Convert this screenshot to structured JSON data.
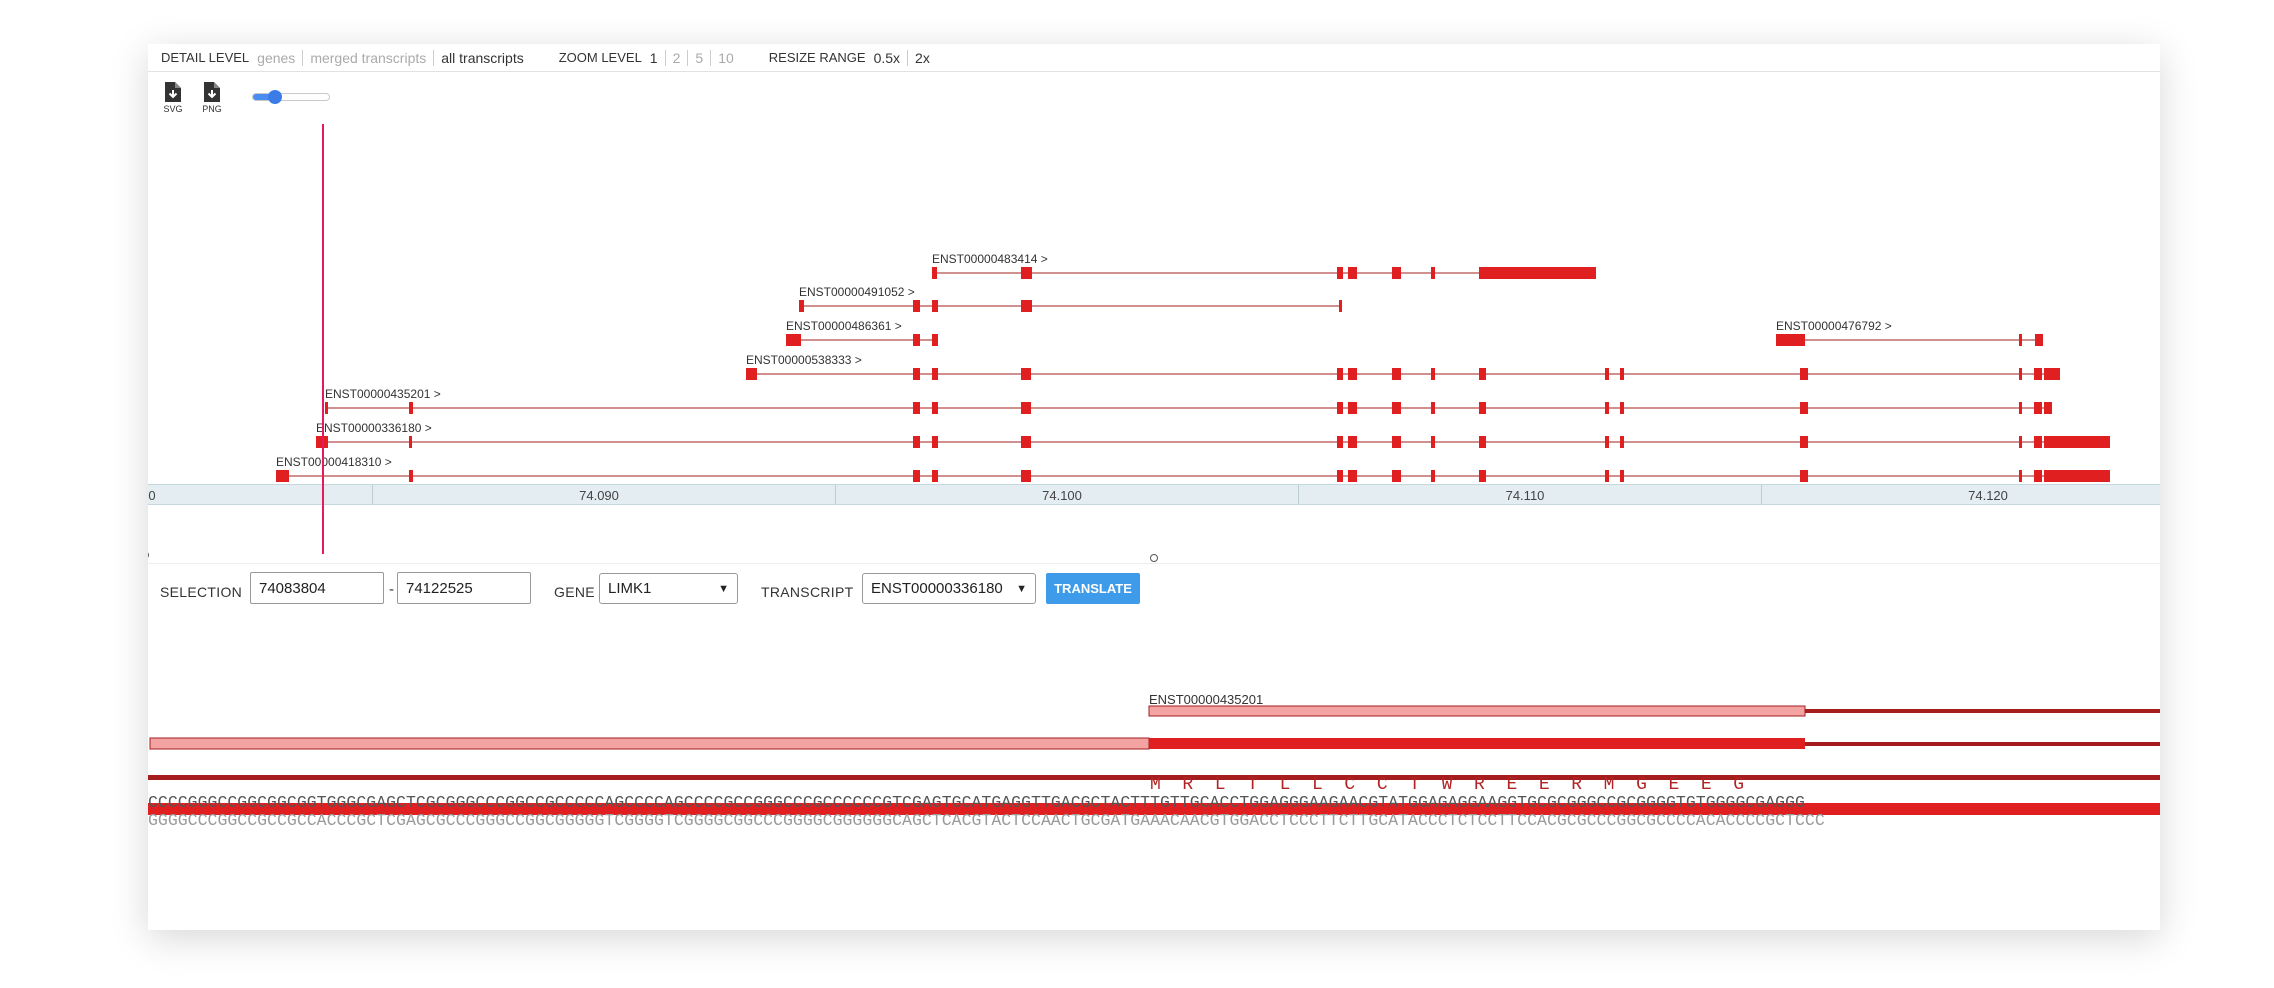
{
  "toolbar": {
    "detail_level_label": "DETAIL LEVEL",
    "detail_options": [
      "genes",
      "merged transcripts",
      "all transcripts"
    ],
    "detail_active": "all transcripts",
    "zoom_label": "ZOOM LEVEL",
    "zoom_options": [
      "1",
      "2",
      "5",
      "10"
    ],
    "zoom_active": "1",
    "resize_label": "RESIZE RANGE",
    "resize_options": [
      "0.5x",
      "2x"
    ]
  },
  "export": {
    "svg_label": "SVG",
    "png_label": "PNG",
    "icon": "file-download-icon"
  },
  "slider": {
    "value_fraction": 0.2
  },
  "colors": {
    "exon": "#e02020",
    "intron": "#c26b6b",
    "cursor": "#e8195f",
    "button": "#3d9be9",
    "utr": "#f4a3a3",
    "dark_track": "#a61d1d"
  },
  "ruler": {
    "labels": [
      "0",
      "74.090",
      "74.100",
      "74.110",
      "74.120"
    ]
  },
  "transcripts": [
    {
      "id": "ENST00000483414 >"
    },
    {
      "id": "ENST00000491052 >"
    },
    {
      "id": "ENST00000486361 >"
    },
    {
      "id": "ENST00000476792 >"
    },
    {
      "id": "ENST00000538333 >"
    },
    {
      "id": "ENST00000435201 >"
    },
    {
      "id": "ENST00000336180 >"
    },
    {
      "id": "ENST00000418310 >"
    }
  ],
  "controls": {
    "selection_label": "SELECTION",
    "selection_start": "74083804",
    "selection_dash": "-",
    "selection_end": "74122525",
    "gene_label": "GENE",
    "gene_value": "LIMK1",
    "transcript_label": "TRANSCRIPT",
    "transcript_value": "ENST00000336180",
    "translate_label": "TRANSLATE"
  },
  "detail": {
    "transcript_label": "ENST00000435201",
    "amino_acids": "M  R  L  T  L  L  C  C  T  W  R  E  E  R  M  G  E  E  G",
    "seq_forward": "CCCCGGGCCGGCGGCGGTGGGCGAGCTCGCGGGCCCGGCCGCCCCCAGCCCCAGCCCCGCCGGGCCCGCCCCCCGTCGAGTGCATGAGGTTGACGCTACTTTGTTGCACCTGGAGGGAAGAACGTATGGAGAGGAAGGTGCGCGGGCCGCGGGGTGTGGGGCGAGGG",
    "seq_reverse": "GGGGCCCGGCCGCCGCCACCCGCTCGAGCGCCCGGGCCGGCGGGGGTCGGGGTCGGGGCGGCCCGGGGCGGGGGGCAGCTCACGTACTCCAACTGCGATGAAACAACGTGGACCTCCCTTCTTGCATACCCTCTCCTTCCACGCGCCCGGCGCCCCACACCCCGCTCCC"
  }
}
